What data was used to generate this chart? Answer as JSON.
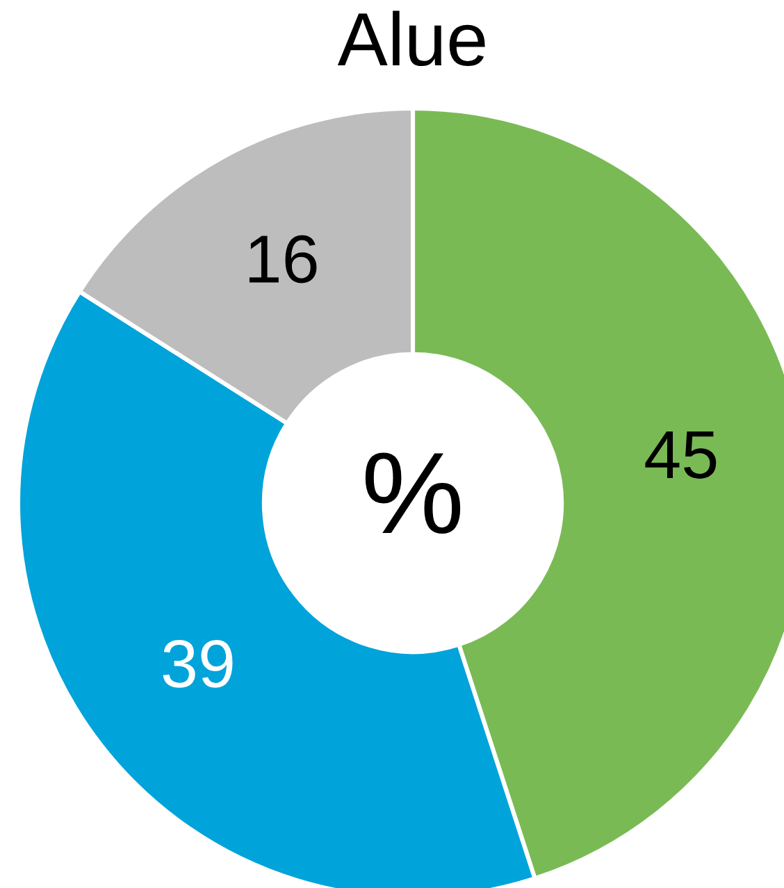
{
  "chart_data": {
    "type": "donut",
    "title": "Alue",
    "categories": [
      null,
      null,
      null
    ],
    "values": [
      45,
      39,
      16
    ],
    "colors": [
      "#7aba55",
      "#00a3da",
      "#bdbdbd"
    ],
    "data_labels": true,
    "annotations": [
      "%"
    ]
  }
}
